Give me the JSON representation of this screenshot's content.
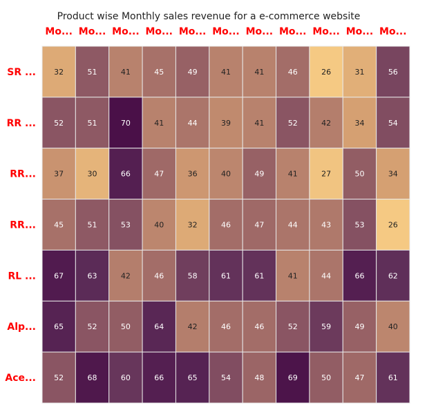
{
  "chart_data": {
    "type": "heatmap",
    "title": "Product wise Monthly sales revenue for a e-commerce website",
    "x_tick_labels": [
      "Mo...",
      "Mo...",
      "Mo...",
      "Mo...",
      "Mo...",
      "Mo...",
      "Mo...",
      "Mo...",
      "Mo...",
      "Mo...",
      "Mo..."
    ],
    "y_tick_labels": [
      "SR ...",
      "RR ...",
      "RR...",
      "RR...",
      "RL ...",
      "Alp...",
      "Ace..."
    ],
    "values": [
      [
        32,
        51,
        41,
        45,
        49,
        41,
        41,
        46,
        26,
        31,
        56
      ],
      [
        52,
        51,
        70,
        41,
        44,
        39,
        41,
        52,
        42,
        34,
        54
      ],
      [
        37,
        30,
        66,
        47,
        36,
        40,
        49,
        41,
        27,
        50,
        34
      ],
      [
        45,
        51,
        53,
        40,
        32,
        46,
        47,
        44,
        43,
        53,
        26
      ],
      [
        67,
        63,
        42,
        46,
        58,
        61,
        61,
        41,
        44,
        66,
        62
      ],
      [
        65,
        52,
        50,
        64,
        42,
        46,
        46,
        52,
        59,
        49,
        40
      ],
      [
        52,
        68,
        60,
        66,
        65,
        54,
        48,
        69,
        50,
        47,
        61
      ]
    ],
    "color_scale": {
      "min_value": 26,
      "max_value": 70,
      "stops": [
        "#f5c983",
        "#d8a373",
        "#b9836d",
        "#9b6566",
        "#7b4860",
        "#5c2c58",
        "#4a1048"
      ]
    },
    "tick_label_color": "#ff0000",
    "data_label_dark_color": "#222222",
    "data_label_light_color": "#ffffff",
    "cell_border_color": "#e8e8e8",
    "legend": "none",
    "grid": false
  }
}
